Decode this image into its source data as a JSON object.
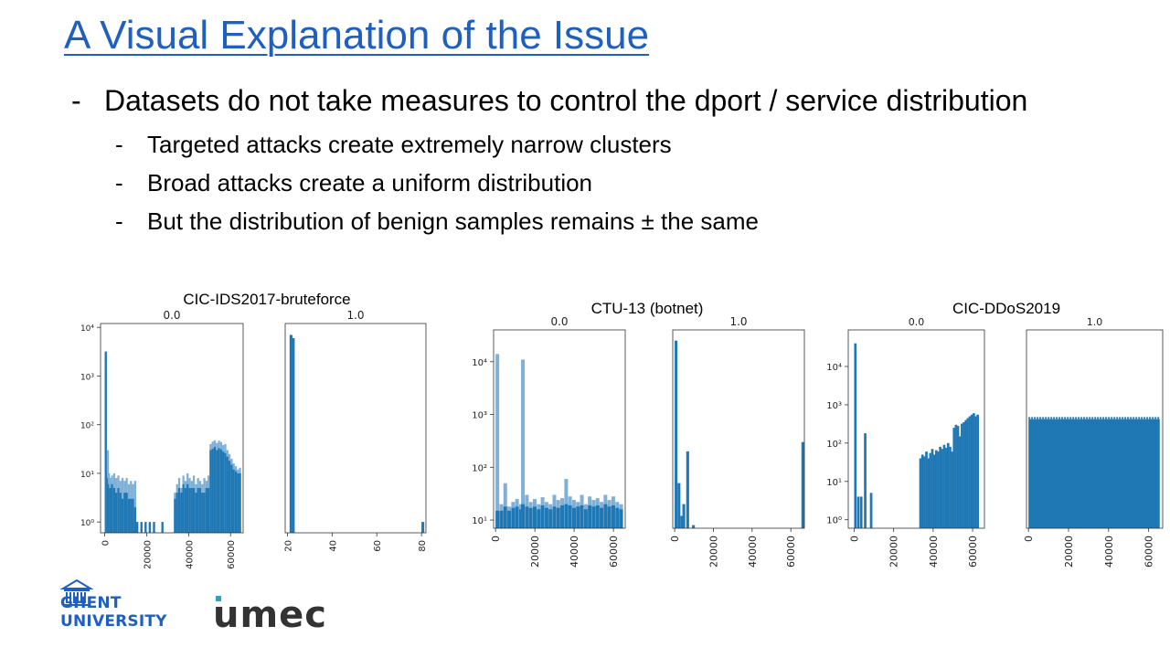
{
  "title": "A Visual Explanation of the Issue",
  "bullets": [
    {
      "level": 1,
      "text": "Datasets do not take measures to control the dport / service distribution"
    },
    {
      "level": 2,
      "text": "Targeted attacks create extremely narrow clusters"
    },
    {
      "level": 2,
      "text": "Broad attacks create a uniform distribution"
    },
    {
      "level": 2,
      "text": "But the distribution of benign samples remains ± the same"
    }
  ],
  "logos": {
    "ghent": {
      "line1": "GHENT",
      "line2": "UNIVERSITY"
    },
    "imec": "umec"
  },
  "colors": {
    "title": "#1f5fbf",
    "bar_dark": "#1f77b4",
    "bar_light": "#7fb0d8"
  },
  "chart_data": [
    {
      "type": "bar",
      "title": "CIC-IDS2017-bruteforce",
      "panels": [
        {
          "subtitle": "0.0",
          "yscale": "log",
          "ylim": [
            0.6,
            12000
          ],
          "yticks": [
            1,
            10,
            100,
            1000,
            10000
          ],
          "ytick_labels": [
            "10⁰",
            "10¹",
            "10²",
            "10³",
            "10⁴"
          ],
          "xlim": [
            -2000,
            66000
          ],
          "xticks": [
            0,
            20000,
            40000,
            60000
          ],
          "xtick_labels": [
            "0",
            "20000",
            "40000",
            "60000"
          ],
          "bins": [
            [
              0,
              3000,
              3200
            ],
            [
              500,
              8,
              10
            ],
            [
              1000,
              30,
              8
            ],
            [
              1500,
              10,
              6
            ],
            [
              2000,
              8,
              5
            ],
            [
              3000,
              9,
              6
            ],
            [
              4000,
              10,
              5
            ],
            [
              5000,
              8,
              4
            ],
            [
              6000,
              9,
              5
            ],
            [
              7000,
              7,
              4
            ],
            [
              8000,
              8,
              3
            ],
            [
              9000,
              7,
              4
            ],
            [
              10000,
              8,
              4
            ],
            [
              11000,
              6,
              3
            ],
            [
              12000,
              7,
              3
            ],
            [
              13000,
              6,
              3
            ],
            [
              14000,
              7,
              2
            ],
            [
              15000,
              1,
              1
            ],
            [
              17000,
              1,
              1
            ],
            [
              19000,
              1,
              1
            ],
            [
              21000,
              1,
              1
            ],
            [
              23000,
              1,
              1
            ],
            [
              27000,
              1,
              1
            ],
            [
              33000,
              4,
              3
            ],
            [
              34000,
              6,
              4
            ],
            [
              35000,
              8,
              5
            ],
            [
              36000,
              5,
              4
            ],
            [
              37000,
              9,
              6
            ],
            [
              38000,
              7,
              5
            ],
            [
              39000,
              10,
              6
            ],
            [
              40000,
              8,
              5
            ],
            [
              41000,
              7,
              5
            ],
            [
              42000,
              9,
              5
            ],
            [
              43000,
              6,
              4
            ],
            [
              44000,
              8,
              5
            ],
            [
              45000,
              7,
              5
            ],
            [
              46000,
              6,
              4
            ],
            [
              47000,
              8,
              4
            ],
            [
              48000,
              7,
              5
            ],
            [
              49000,
              9,
              5
            ],
            [
              50000,
              40,
              30
            ],
            [
              51000,
              45,
              32
            ],
            [
              52000,
              48,
              35
            ],
            [
              53000,
              42,
              30
            ],
            [
              54000,
              47,
              33
            ],
            [
              55000,
              44,
              31
            ],
            [
              56000,
              38,
              28
            ],
            [
              57000,
              40,
              26
            ],
            [
              58000,
              30,
              22
            ],
            [
              59000,
              25,
              18
            ],
            [
              60000,
              20,
              15
            ],
            [
              61000,
              16,
              12
            ],
            [
              62000,
              14,
              11
            ],
            [
              63000,
              12,
              10
            ],
            [
              64000,
              13,
              10
            ]
          ]
        },
        {
          "subtitle": "1.0",
          "yscale": "log",
          "ylim": [
            0.6,
            12000
          ],
          "xlim": [
            19,
            82
          ],
          "xticks": [
            20,
            40,
            60,
            80
          ],
          "xtick_labels": [
            "20",
            "40",
            "60",
            "80"
          ],
          "bins": [
            [
              21,
              7000,
              7000
            ],
            [
              22,
              6000,
              6000
            ],
            [
              80,
              1,
              1
            ]
          ]
        }
      ]
    },
    {
      "type": "bar",
      "title": "CTU-13 (botnet)",
      "panels": [
        {
          "subtitle": "0.0",
          "yscale": "log",
          "ylim": [
            7,
            40000
          ],
          "yticks": [
            10,
            100,
            1000,
            10000
          ],
          "ytick_labels": [
            "10¹",
            "10²",
            "10³",
            "10⁴"
          ],
          "xlim": [
            -1000,
            66000
          ],
          "xticks": [
            0,
            20000,
            40000,
            60000
          ],
          "xtick_labels": [
            "0",
            "20000",
            "40000",
            "60000"
          ],
          "bins": [
            [
              0,
              14000,
              15
            ],
            [
              2000,
              20,
              15
            ],
            [
              4000,
              50,
              18
            ],
            [
              6000,
              18,
              15
            ],
            [
              8000,
              22,
              17
            ],
            [
              10000,
              25,
              18
            ],
            [
              12000,
              20,
              16
            ],
            [
              13000,
              11000,
              20
            ],
            [
              15000,
              30,
              18
            ],
            [
              17000,
              22,
              17
            ],
            [
              19000,
              25,
              18
            ],
            [
              21000,
              20,
              16
            ],
            [
              23000,
              27,
              19
            ],
            [
              25000,
              22,
              17
            ],
            [
              27000,
              20,
              16
            ],
            [
              29000,
              30,
              18
            ],
            [
              31000,
              24,
              17
            ],
            [
              33000,
              26,
              19
            ],
            [
              35000,
              60,
              20
            ],
            [
              37000,
              28,
              19
            ],
            [
              39000,
              24,
              17
            ],
            [
              41000,
              22,
              18
            ],
            [
              43000,
              30,
              19
            ],
            [
              45000,
              20,
              16
            ],
            [
              47000,
              28,
              19
            ],
            [
              49000,
              24,
              18
            ],
            [
              51000,
              26,
              19
            ],
            [
              53000,
              22,
              17
            ],
            [
              55000,
              30,
              20
            ],
            [
              57000,
              24,
              18
            ],
            [
              59000,
              28,
              19
            ],
            [
              61000,
              22,
              17
            ],
            [
              63000,
              20,
              16
            ]
          ]
        },
        {
          "subtitle": "1.0",
          "yscale": "log",
          "ylim": [
            7,
            40000
          ],
          "xlim": [
            -1000,
            67000
          ],
          "xticks": [
            0,
            20000,
            40000,
            60000
          ],
          "xtick_labels": [
            "0",
            "20000",
            "40000",
            "60000"
          ],
          "bins": [
            [
              0,
              25000,
              25000
            ],
            [
              1500,
              50,
              50
            ],
            [
              3000,
              12,
              12
            ],
            [
              4000,
              20,
              20
            ],
            [
              6000,
              200,
              200
            ],
            [
              9000,
              8,
              8
            ],
            [
              65500,
              300,
              300
            ]
          ]
        }
      ]
    },
    {
      "type": "bar",
      "title": "CIC-DDoS2019",
      "panels": [
        {
          "subtitle": "0.0",
          "yscale": "log",
          "ylim": [
            0.6,
            90000
          ],
          "yticks": [
            1,
            10,
            100,
            1000,
            10000
          ],
          "ytick_labels": [
            "10⁰",
            "10¹",
            "10²",
            "10³",
            "10⁴"
          ],
          "xlim": [
            -3000,
            66000
          ],
          "xticks": [
            0,
            20000,
            40000,
            60000
          ],
          "xtick_labels": [
            "0",
            "20000",
            "40000",
            "60000"
          ],
          "bins": [
            [
              0,
              40000,
              40000
            ],
            [
              1500,
              4,
              4
            ],
            [
              3000,
              4,
              4
            ],
            [
              5000,
              180,
              180
            ],
            [
              8000,
              5,
              5
            ],
            [
              33000,
              40,
              40
            ],
            [
              34000,
              50,
              50
            ],
            [
              35000,
              45,
              45
            ],
            [
              36000,
              60,
              60
            ],
            [
              37000,
              40,
              40
            ],
            [
              38000,
              55,
              55
            ],
            [
              39000,
              70,
              70
            ],
            [
              40000,
              50,
              50
            ],
            [
              41000,
              65,
              65
            ],
            [
              42000,
              60,
              60
            ],
            [
              43000,
              80,
              80
            ],
            [
              44000,
              70,
              70
            ],
            [
              45000,
              90,
              90
            ],
            [
              46000,
              75,
              75
            ],
            [
              47000,
              100,
              100
            ],
            [
              48000,
              80,
              80
            ],
            [
              49000,
              60,
              60
            ],
            [
              50000,
              250,
              250
            ],
            [
              51000,
              300,
              300
            ],
            [
              52000,
              280,
              280
            ],
            [
              53000,
              150,
              150
            ],
            [
              54000,
              320,
              320
            ],
            [
              55000,
              350,
              350
            ],
            [
              56000,
              400,
              400
            ],
            [
              57000,
              450,
              450
            ],
            [
              58000,
              500,
              500
            ],
            [
              59000,
              550,
              550
            ],
            [
              60000,
              600,
              600
            ],
            [
              61000,
              500,
              500
            ],
            [
              62000,
              550,
              550
            ]
          ]
        },
        {
          "subtitle": "1.0",
          "yscale": "log",
          "ylim": [
            0.6,
            90000
          ],
          "xlim": [
            -1000,
            67000
          ],
          "xticks": [
            0,
            20000,
            40000,
            60000
          ],
          "xtick_labels": [
            "0",
            "20000",
            "40000",
            "60000"
          ],
          "uniform": {
            "from": 0,
            "to": 65535,
            "value": 420
          }
        }
      ]
    }
  ]
}
